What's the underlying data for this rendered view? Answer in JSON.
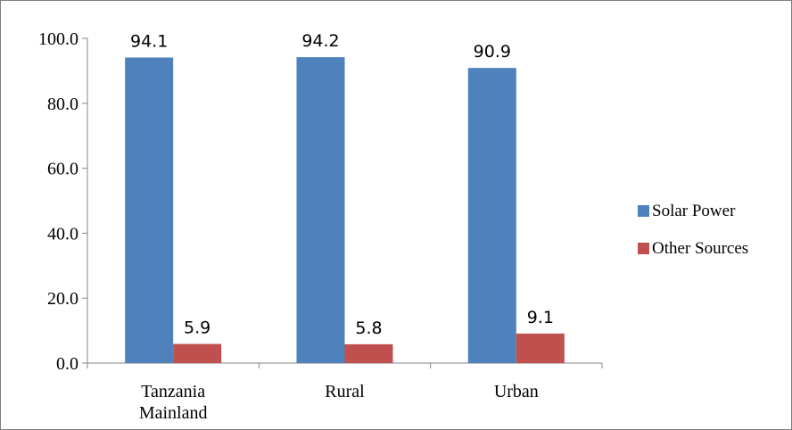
{
  "chart_data": {
    "type": "bar",
    "categories": [
      [
        "Tanzania",
        "Mainland"
      ],
      [
        "Rural"
      ],
      [
        "Urban"
      ]
    ],
    "series": [
      {
        "name": "Solar Power",
        "values": [
          94.1,
          94.2,
          90.9
        ],
        "labels": [
          "94.1",
          "94.2",
          "90.9"
        ],
        "color": "#4F81BD"
      },
      {
        "name": "Other Sources",
        "values": [
          5.9,
          5.8,
          9.1
        ],
        "labels": [
          "5.9",
          "5.8",
          "9.1"
        ],
        "color": "#C0504D"
      }
    ],
    "yticks": [
      "0.0",
      "20.0",
      "40.0",
      "60.0",
      "80.0",
      "100.0"
    ],
    "ylim": [
      0,
      100
    ],
    "grid": false,
    "legend": "right"
  }
}
